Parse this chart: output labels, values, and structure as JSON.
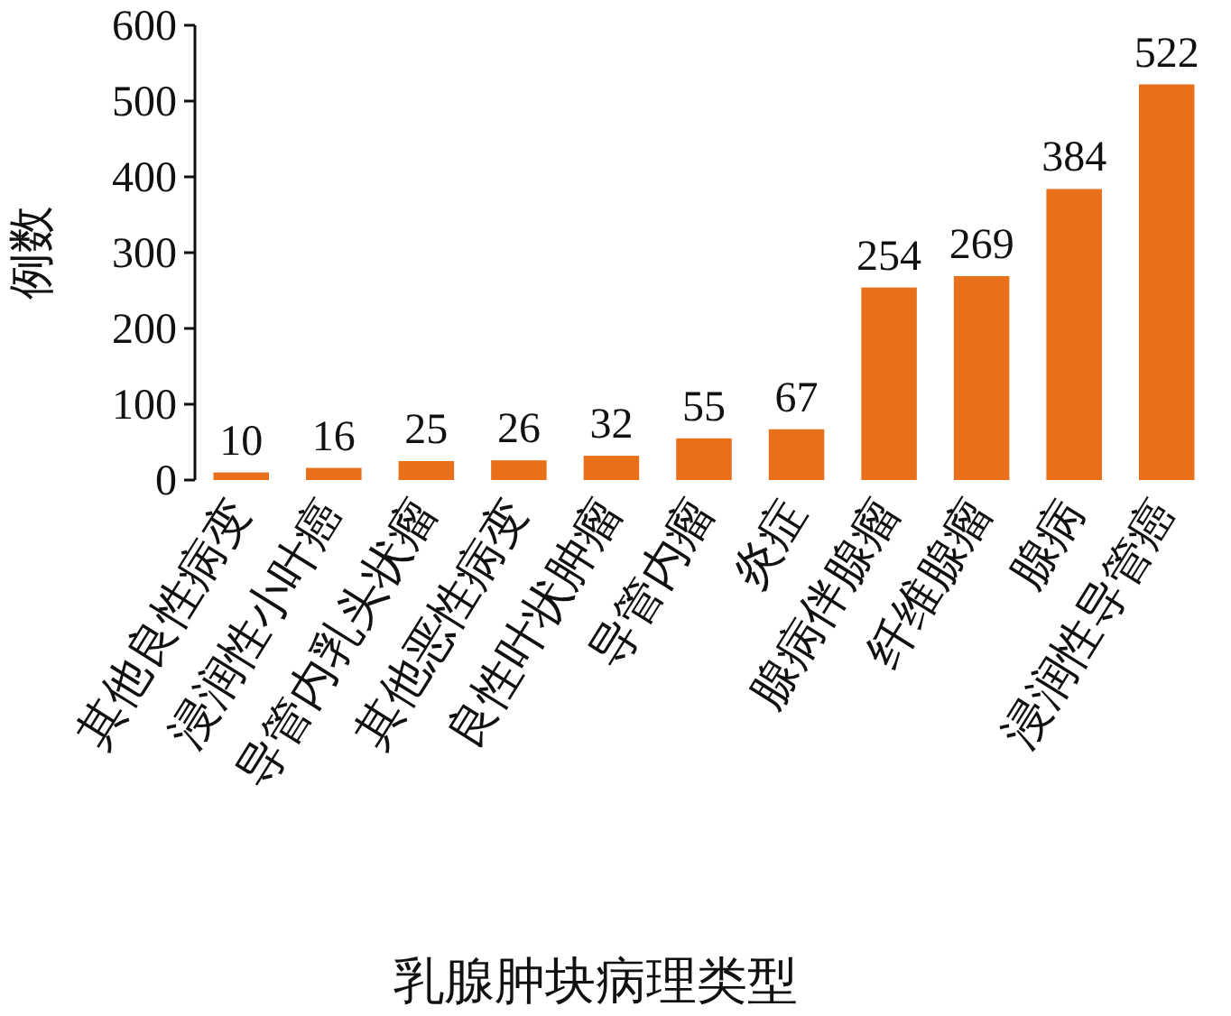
{
  "chart_data": {
    "type": "bar",
    "xlabel": "乳腺肿块病理类型",
    "ylabel": "例数",
    "categories": [
      "其他良性病变",
      "浸润性小叶癌",
      "导管内乳头状瘤",
      "其他恶性病变",
      "良性叶状肿瘤",
      "导管内瘤",
      "炎症",
      "腺病伴腺瘤",
      "纤维腺瘤",
      "腺病",
      "浸润性导管癌"
    ],
    "values": [
      10,
      16,
      25,
      26,
      32,
      55,
      67,
      254,
      269,
      384,
      522
    ],
    "color": "#e8701a",
    "ylim": [
      0,
      600
    ],
    "yticks": [
      0,
      100,
      200,
      300,
      400,
      500,
      600
    ],
    "data_labels": true
  }
}
